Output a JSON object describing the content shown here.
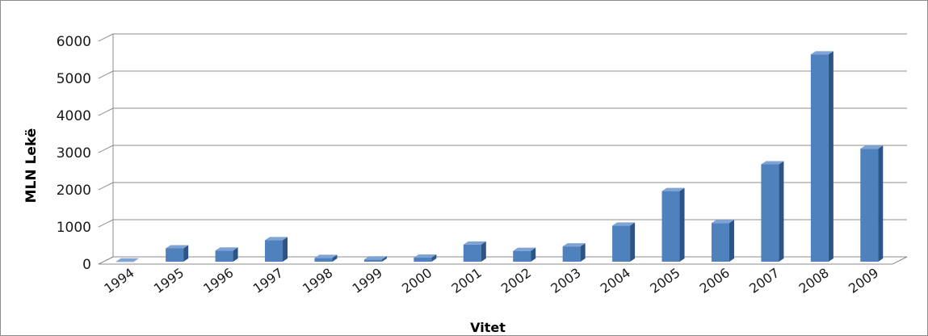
{
  "chart_data": {
    "type": "bar",
    "style": "3d-column",
    "categories": [
      "1994",
      "1995",
      "1996",
      "1997",
      "1998",
      "1999",
      "2000",
      "2001",
      "2002",
      "2003",
      "2004",
      "2005",
      "2006",
      "2007",
      "2008",
      "2009"
    ],
    "series": [
      {
        "values": [
          5,
          360,
          300,
          580,
          100,
          60,
          110,
          460,
          290,
          410,
          970,
          1900,
          1040,
          2620,
          5580,
          3040
        ]
      }
    ],
    "xlabel": "Vitet",
    "ylabel": "MLN Lekë",
    "ylim": [
      0,
      6000
    ],
    "yticks": [
      "0",
      "1000",
      "2000",
      "3000",
      "4000",
      "5000",
      "6000"
    ],
    "grid": true,
    "legend": "none",
    "colors": {
      "bar_front": "#4f81bd",
      "bar_side": "#2c5487",
      "bar_top": "#7fa3d4",
      "grid": "#8c8c8c",
      "frame": "#8c8c8c"
    }
  }
}
